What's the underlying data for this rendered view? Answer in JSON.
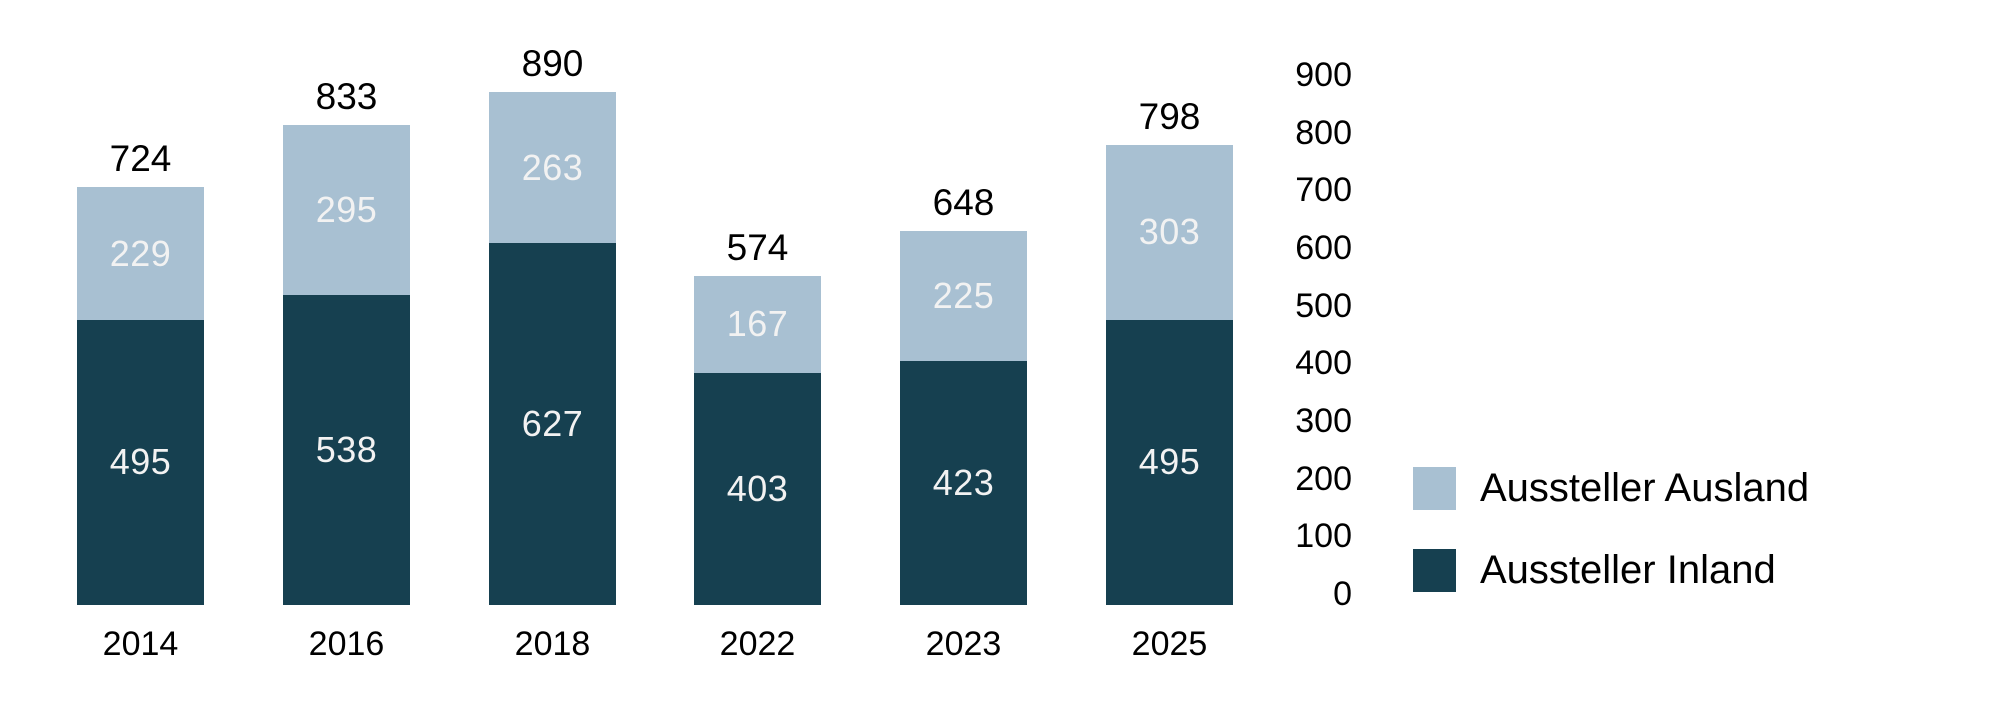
{
  "chart_data": {
    "type": "bar",
    "stacked": true,
    "title": "",
    "categories": [
      "2014",
      "2016",
      "2018",
      "2022",
      "2023",
      "2025"
    ],
    "series": [
      {
        "name": "Aussteller Inland",
        "color": "#164050",
        "values": [
          495,
          538,
          627,
          403,
          423,
          495
        ]
      },
      {
        "name": "Aussteller Ausland",
        "color": "#a8c0d2",
        "values": [
          229,
          295,
          263,
          167,
          225,
          303
        ]
      }
    ],
    "totals": [
      724,
      833,
      890,
      574,
      648,
      798
    ],
    "ylim": [
      0,
      900
    ],
    "yticks": [
      0,
      100,
      200,
      300,
      400,
      500,
      600,
      700,
      800,
      900
    ],
    "grid": false,
    "axis_lines": false,
    "y_axis_position": "right",
    "legend_position": "right",
    "value_label_color": "#f2f2f2",
    "total_label_color": "#000000",
    "axis_label_color": "#000000",
    "background_color": "#ffffff"
  },
  "legend": {
    "items": [
      {
        "label": "Aussteller Ausland",
        "color": "#a8c0d2"
      },
      {
        "label": "Aussteller Inland",
        "color": "#164050"
      }
    ]
  }
}
